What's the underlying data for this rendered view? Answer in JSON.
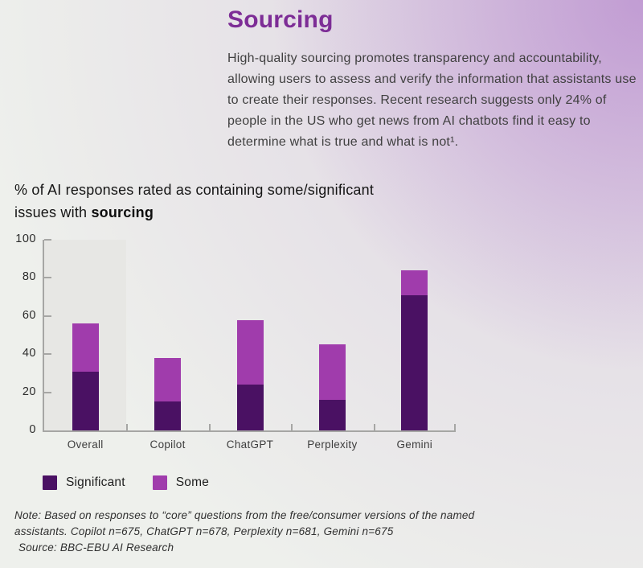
{
  "page": {
    "title": "Sourcing",
    "intro": "High-quality sourcing promotes transparency and accountability, allowing users to assess and verify the information that assistants use to create their responses. Recent research suggests only 24% of people in the US who get news from AI chatbots find it easy to determine what is true and what is not¹."
  },
  "chart_heading": {
    "line1": "% of AI responses rated as containing some/significant",
    "line2_prefix": "issues with ",
    "line2_bold": "sourcing"
  },
  "chart_data": {
    "type": "bar",
    "stacked": true,
    "title": "% of AI responses rated as containing some/significant issues with sourcing",
    "categories": [
      "Overall",
      "Copilot",
      "ChatGPT",
      "Perplexity",
      "Gemini"
    ],
    "series": [
      {
        "name": "Significant",
        "color": "#4a1163",
        "values": [
          31,
          15,
          24,
          16,
          71
        ]
      },
      {
        "name": "Some",
        "color": "#a03cac",
        "values": [
          25,
          23,
          34,
          29,
          13
        ]
      }
    ],
    "stack_totals": [
      56,
      38,
      58,
      45,
      84
    ],
    "ylim": [
      0,
      100
    ],
    "yticks": [
      0,
      20,
      40,
      60,
      80,
      100
    ],
    "xlabel": "",
    "ylabel": "",
    "grid": false,
    "highlighted_category": "Overall",
    "legend_position": "bottom-left"
  },
  "legend": {
    "items": [
      {
        "label": "Significant",
        "color": "#4a1163"
      },
      {
        "label": "Some",
        "color": "#a03cac"
      }
    ]
  },
  "footnote": {
    "line1": "Note: Based on responses to “core” questions from the free/consumer versions of the named",
    "line2": "assistants. Copilot n=675, ChatGPT n=678, Perplexity n=681, Gemini n=675",
    "line3": "Source: BBC-EBU AI Research"
  },
  "colors": {
    "title_accent": "#7d2d96",
    "significant": "#4a1163",
    "some": "#a03cac",
    "axis": "#a6a6a4",
    "highlight_band": "#e7e7e4",
    "background_corner": "#d7bde0",
    "background_base": "#eef0ec"
  }
}
